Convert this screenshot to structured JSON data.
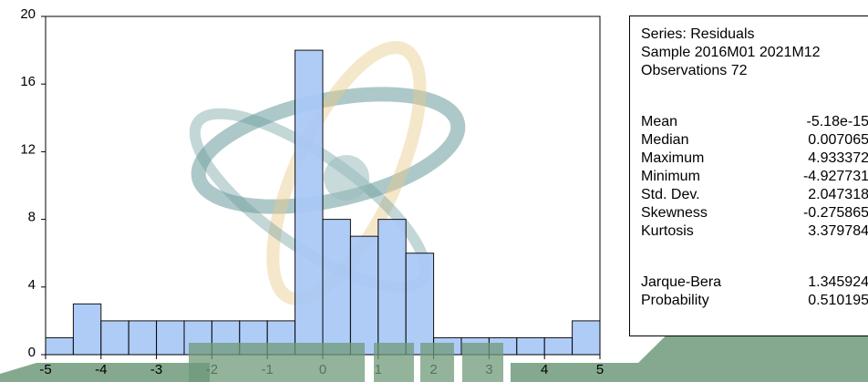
{
  "chart_data": {
    "type": "histogram",
    "bins": [
      {
        "start": -5.0,
        "end": -4.5,
        "count": 1
      },
      {
        "start": -4.5,
        "end": -4.0,
        "count": 3
      },
      {
        "start": -4.0,
        "end": -3.5,
        "count": 2
      },
      {
        "start": -3.5,
        "end": -3.0,
        "count": 2
      },
      {
        "start": -3.0,
        "end": -2.5,
        "count": 2
      },
      {
        "start": -2.5,
        "end": -2.0,
        "count": 2
      },
      {
        "start": -2.0,
        "end": -1.5,
        "count": 2
      },
      {
        "start": -1.5,
        "end": -1.0,
        "count": 2
      },
      {
        "start": -1.0,
        "end": -0.5,
        "count": 2
      },
      {
        "start": -0.5,
        "end": 0.0,
        "count": 18
      },
      {
        "start": 0.0,
        "end": 0.5,
        "count": 8
      },
      {
        "start": 0.5,
        "end": 1.0,
        "count": 7
      },
      {
        "start": 1.0,
        "end": 1.5,
        "count": 8
      },
      {
        "start": 1.5,
        "end": 2.0,
        "count": 6
      },
      {
        "start": 2.0,
        "end": 2.5,
        "count": 1
      },
      {
        "start": 2.5,
        "end": 3.0,
        "count": 1
      },
      {
        "start": 3.0,
        "end": 3.5,
        "count": 1
      },
      {
        "start": 3.5,
        "end": 4.0,
        "count": 1
      },
      {
        "start": 4.0,
        "end": 4.5,
        "count": 1
      },
      {
        "start": 4.5,
        "end": 5.0,
        "count": 2
      }
    ],
    "xlim": [
      -5,
      5
    ],
    "ylim": [
      0,
      20
    ],
    "x_ticks": [
      "-5",
      "-4",
      "-3",
      "-2",
      "-1",
      "0",
      "1",
      "2",
      "3",
      "4",
      "5"
    ],
    "y_ticks": [
      "0",
      "4",
      "8",
      "12",
      "16",
      "20"
    ],
    "bar_color": "#a9c8f7",
    "bar_edge_color": "#000000",
    "grid": false
  },
  "stats": {
    "series": "Series: Residuals",
    "sample": "Sample 2016M01 2021M12",
    "observations": "Observations 72",
    "rows": [
      {
        "name": "Mean",
        "value": "-5.18e-15"
      },
      {
        "name": "Median",
        "value": "0.007065"
      },
      {
        "name": "Maximum",
        "value": "4.933372"
      },
      {
        "name": "Minimum",
        "value": "-4.927731"
      },
      {
        "name": "Std. Dev.",
        "value": "2.047318"
      },
      {
        "name": "Skewness",
        "value": "-0.275865"
      },
      {
        "name": "Kurtosis",
        "value": "3.379784"
      }
    ],
    "jb_rows": [
      {
        "name": "Jarque-Bera",
        "value": "1.345924"
      },
      {
        "name": "Probability",
        "value": "0.510195"
      }
    ]
  },
  "watermark": {
    "icon": "atom-globe-logo",
    "colors": {
      "orbit_teal": "#6a9a9b",
      "orbit_gold": "#e8c98a",
      "globe": "#9bbcbc",
      "band_green": "#6f9a7a"
    }
  }
}
